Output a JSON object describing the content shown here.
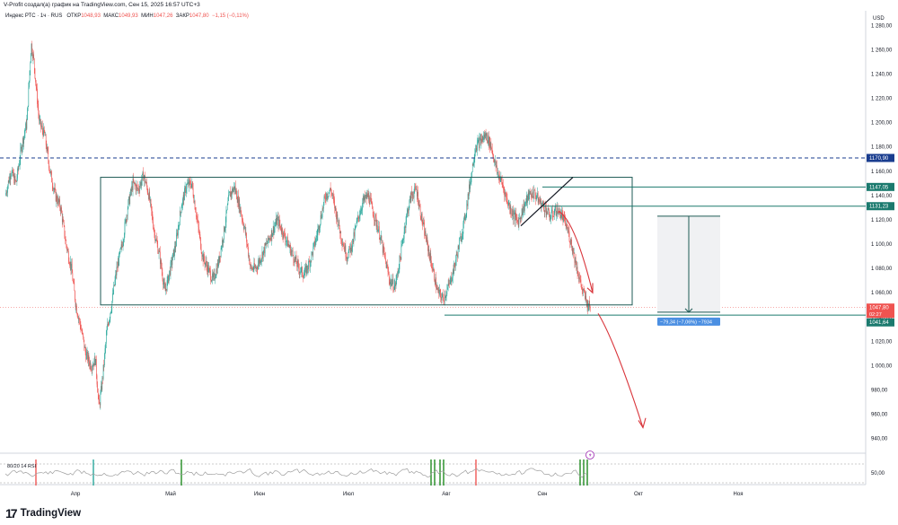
{
  "header": {
    "attribution": "V-Profit создал(а) график на TradingView.com, Сен 15, 2025 16:57 UTC+3",
    "symbol": "Индекс РТС · 1ч · RUS",
    "open_label": "ОТКР",
    "open_value": "1048,93",
    "high_label": "МАКС",
    "high_value": "1049,93",
    "low_label": "МИН",
    "low_value": "1047,26",
    "close_label": "ЗАКР",
    "close_value": "1047,80",
    "change_value": "−1,15 (−0,11%)"
  },
  "currency": "USD",
  "indicator_label": "80/20 14 RSI",
  "indicator_scale": "50,00",
  "badges": {
    "line_1170": "1170,90",
    "line_1147": "1147,05",
    "line_1131": "1131,23",
    "price_now": "1047,80",
    "timer": "02:27",
    "line_1041": "1041,64",
    "measure": "−79,34 (−7,06%) −7934"
  },
  "logo": {
    "text": "TradingView",
    "mark": "17"
  },
  "colors": {
    "bull": "#26a69a",
    "bear": "#ef5350",
    "box": "#1e5a55",
    "dash": "#1a3d8f",
    "arrow": "#d9343a",
    "rsi_line": "#9e9e9e",
    "rsi_signal": "#1b8a1b",
    "measure_blue": "#4b8fe2",
    "teal_badge": "#1b7a6e"
  },
  "chart_data": {
    "type": "candlestick",
    "title": "Индекс РТС · 1ч · RUS",
    "ylabel": "USD",
    "ylim": [
      928,
      1292
    ],
    "y_ticks": [
      940,
      960,
      980,
      1000,
      1020,
      1040,
      1060,
      1080,
      1100,
      1120,
      1140,
      1160,
      1180,
      1200,
      1220,
      1240,
      1260,
      1280
    ],
    "y_tick_labels": [
      "940,00",
      "960,00",
      "980,00",
      "1 000,00",
      "1 020,00",
      "1 040,00",
      "1 060,00",
      "1 080,00",
      "1 100,00",
      "1 120,00",
      "1 140,00",
      "1 160,00",
      "1 180,00",
      "1 200,00",
      "1 220,00",
      "1 240,00",
      "1 260,00",
      "1 280,00"
    ],
    "x_labels": [
      "Апр",
      "Май",
      "Июн",
      "Июл",
      "Авг",
      "Сен",
      "Окт",
      "Ноя"
    ],
    "price_path": [
      [
        0,
        1140
      ],
      [
        0.6,
        1160
      ],
      [
        1.2,
        1150
      ],
      [
        1.8,
        1180
      ],
      [
        2.4,
        1200
      ],
      [
        2.9,
        1265
      ],
      [
        3.2,
        1250
      ],
      [
        3.8,
        1200
      ],
      [
        4.4,
        1190
      ],
      [
        5.0,
        1160
      ],
      [
        5.6,
        1140
      ],
      [
        6.2,
        1130
      ],
      [
        6.8,
        1100
      ],
      [
        7.4,
        1080
      ],
      [
        7.9,
        1050
      ],
      [
        8.5,
        1030
      ],
      [
        9.0,
        1010
      ],
      [
        9.6,
        1000
      ],
      [
        10.1,
        1005
      ],
      [
        10.5,
        965
      ],
      [
        10.9,
        990
      ],
      [
        11.4,
        1030
      ],
      [
        11.9,
        1050
      ],
      [
        12.5,
        1080
      ],
      [
        13.1,
        1100
      ],
      [
        13.7,
        1130
      ],
      [
        14.3,
        1150
      ],
      [
        14.9,
        1145
      ],
      [
        15.5,
        1157
      ],
      [
        16.1,
        1140
      ],
      [
        16.7,
        1110
      ],
      [
        17.3,
        1090
      ],
      [
        17.9,
        1060
      ],
      [
        18.5,
        1080
      ],
      [
        19.1,
        1100
      ],
      [
        19.7,
        1130
      ],
      [
        20.3,
        1148
      ],
      [
        20.9,
        1150
      ],
      [
        21.5,
        1120
      ],
      [
        22.1,
        1090
      ],
      [
        22.7,
        1080
      ],
      [
        23.3,
        1070
      ],
      [
        23.9,
        1085
      ],
      [
        24.5,
        1110
      ],
      [
        25.1,
        1140
      ],
      [
        25.7,
        1147
      ],
      [
        26.3,
        1130
      ],
      [
        26.9,
        1110
      ],
      [
        27.5,
        1080
      ],
      [
        28.1,
        1080
      ],
      [
        28.7,
        1090
      ],
      [
        29.3,
        1100
      ],
      [
        29.9,
        1110
      ],
      [
        30.5,
        1120
      ],
      [
        31.1,
        1110
      ],
      [
        31.7,
        1100
      ],
      [
        32.3,
        1090
      ],
      [
        32.9,
        1080
      ],
      [
        33.5,
        1075
      ],
      [
        34.1,
        1085
      ],
      [
        34.7,
        1100
      ],
      [
        35.3,
        1120
      ],
      [
        35.9,
        1140
      ],
      [
        36.5,
        1145
      ],
      [
        37.1,
        1125
      ],
      [
        37.7,
        1105
      ],
      [
        38.3,
        1090
      ],
      [
        38.9,
        1100
      ],
      [
        39.5,
        1120
      ],
      [
        40.1,
        1135
      ],
      [
        40.7,
        1140
      ],
      [
        41.3,
        1125
      ],
      [
        41.9,
        1110
      ],
      [
        42.5,
        1090
      ],
      [
        43.1,
        1070
      ],
      [
        43.7,
        1065
      ],
      [
        44.3,
        1090
      ],
      [
        44.9,
        1120
      ],
      [
        45.5,
        1140
      ],
      [
        46.1,
        1145
      ],
      [
        46.7,
        1120
      ],
      [
        47.3,
        1100
      ],
      [
        47.9,
        1080
      ],
      [
        48.5,
        1060
      ],
      [
        49.1,
        1055
      ],
      [
        49.7,
        1065
      ],
      [
        50.3,
        1080
      ],
      [
        50.9,
        1100
      ],
      [
        51.5,
        1120
      ],
      [
        52.1,
        1150
      ],
      [
        52.7,
        1180
      ],
      [
        53.3,
        1185
      ],
      [
        53.9,
        1190
      ],
      [
        54.5,
        1180
      ],
      [
        55.1,
        1160
      ],
      [
        55.7,
        1150
      ],
      [
        56.3,
        1135
      ],
      [
        56.9,
        1125
      ],
      [
        57.5,
        1118
      ],
      [
        58.1,
        1130
      ],
      [
        58.7,
        1140
      ],
      [
        59.3,
        1142
      ],
      [
        59.9,
        1135
      ],
      [
        60.5,
        1130
      ],
      [
        61.1,
        1122
      ],
      [
        61.7,
        1128
      ],
      [
        62.3,
        1125
      ],
      [
        62.9,
        1115
      ],
      [
        63.5,
        1100
      ],
      [
        64.1,
        1080
      ],
      [
        64.7,
        1062
      ],
      [
        65.3,
        1050
      ],
      [
        65.6,
        1048
      ]
    ],
    "levels": [
      {
        "value": 1170.9,
        "style": "dashed"
      },
      {
        "value": 1147.05
      },
      {
        "value": 1131.23
      },
      {
        "value": 1047.8,
        "style": "dotted"
      },
      {
        "value": 1041.64
      }
    ],
    "range_box": {
      "y_top": 1155,
      "y_bottom": 1050
    },
    "measure": {
      "from": 1123,
      "to": 1044,
      "change": -79.34,
      "change_pct": -7.06
    },
    "rsi": {
      "scale_label": 50.0,
      "upper": 80,
      "lower": 20
    }
  }
}
